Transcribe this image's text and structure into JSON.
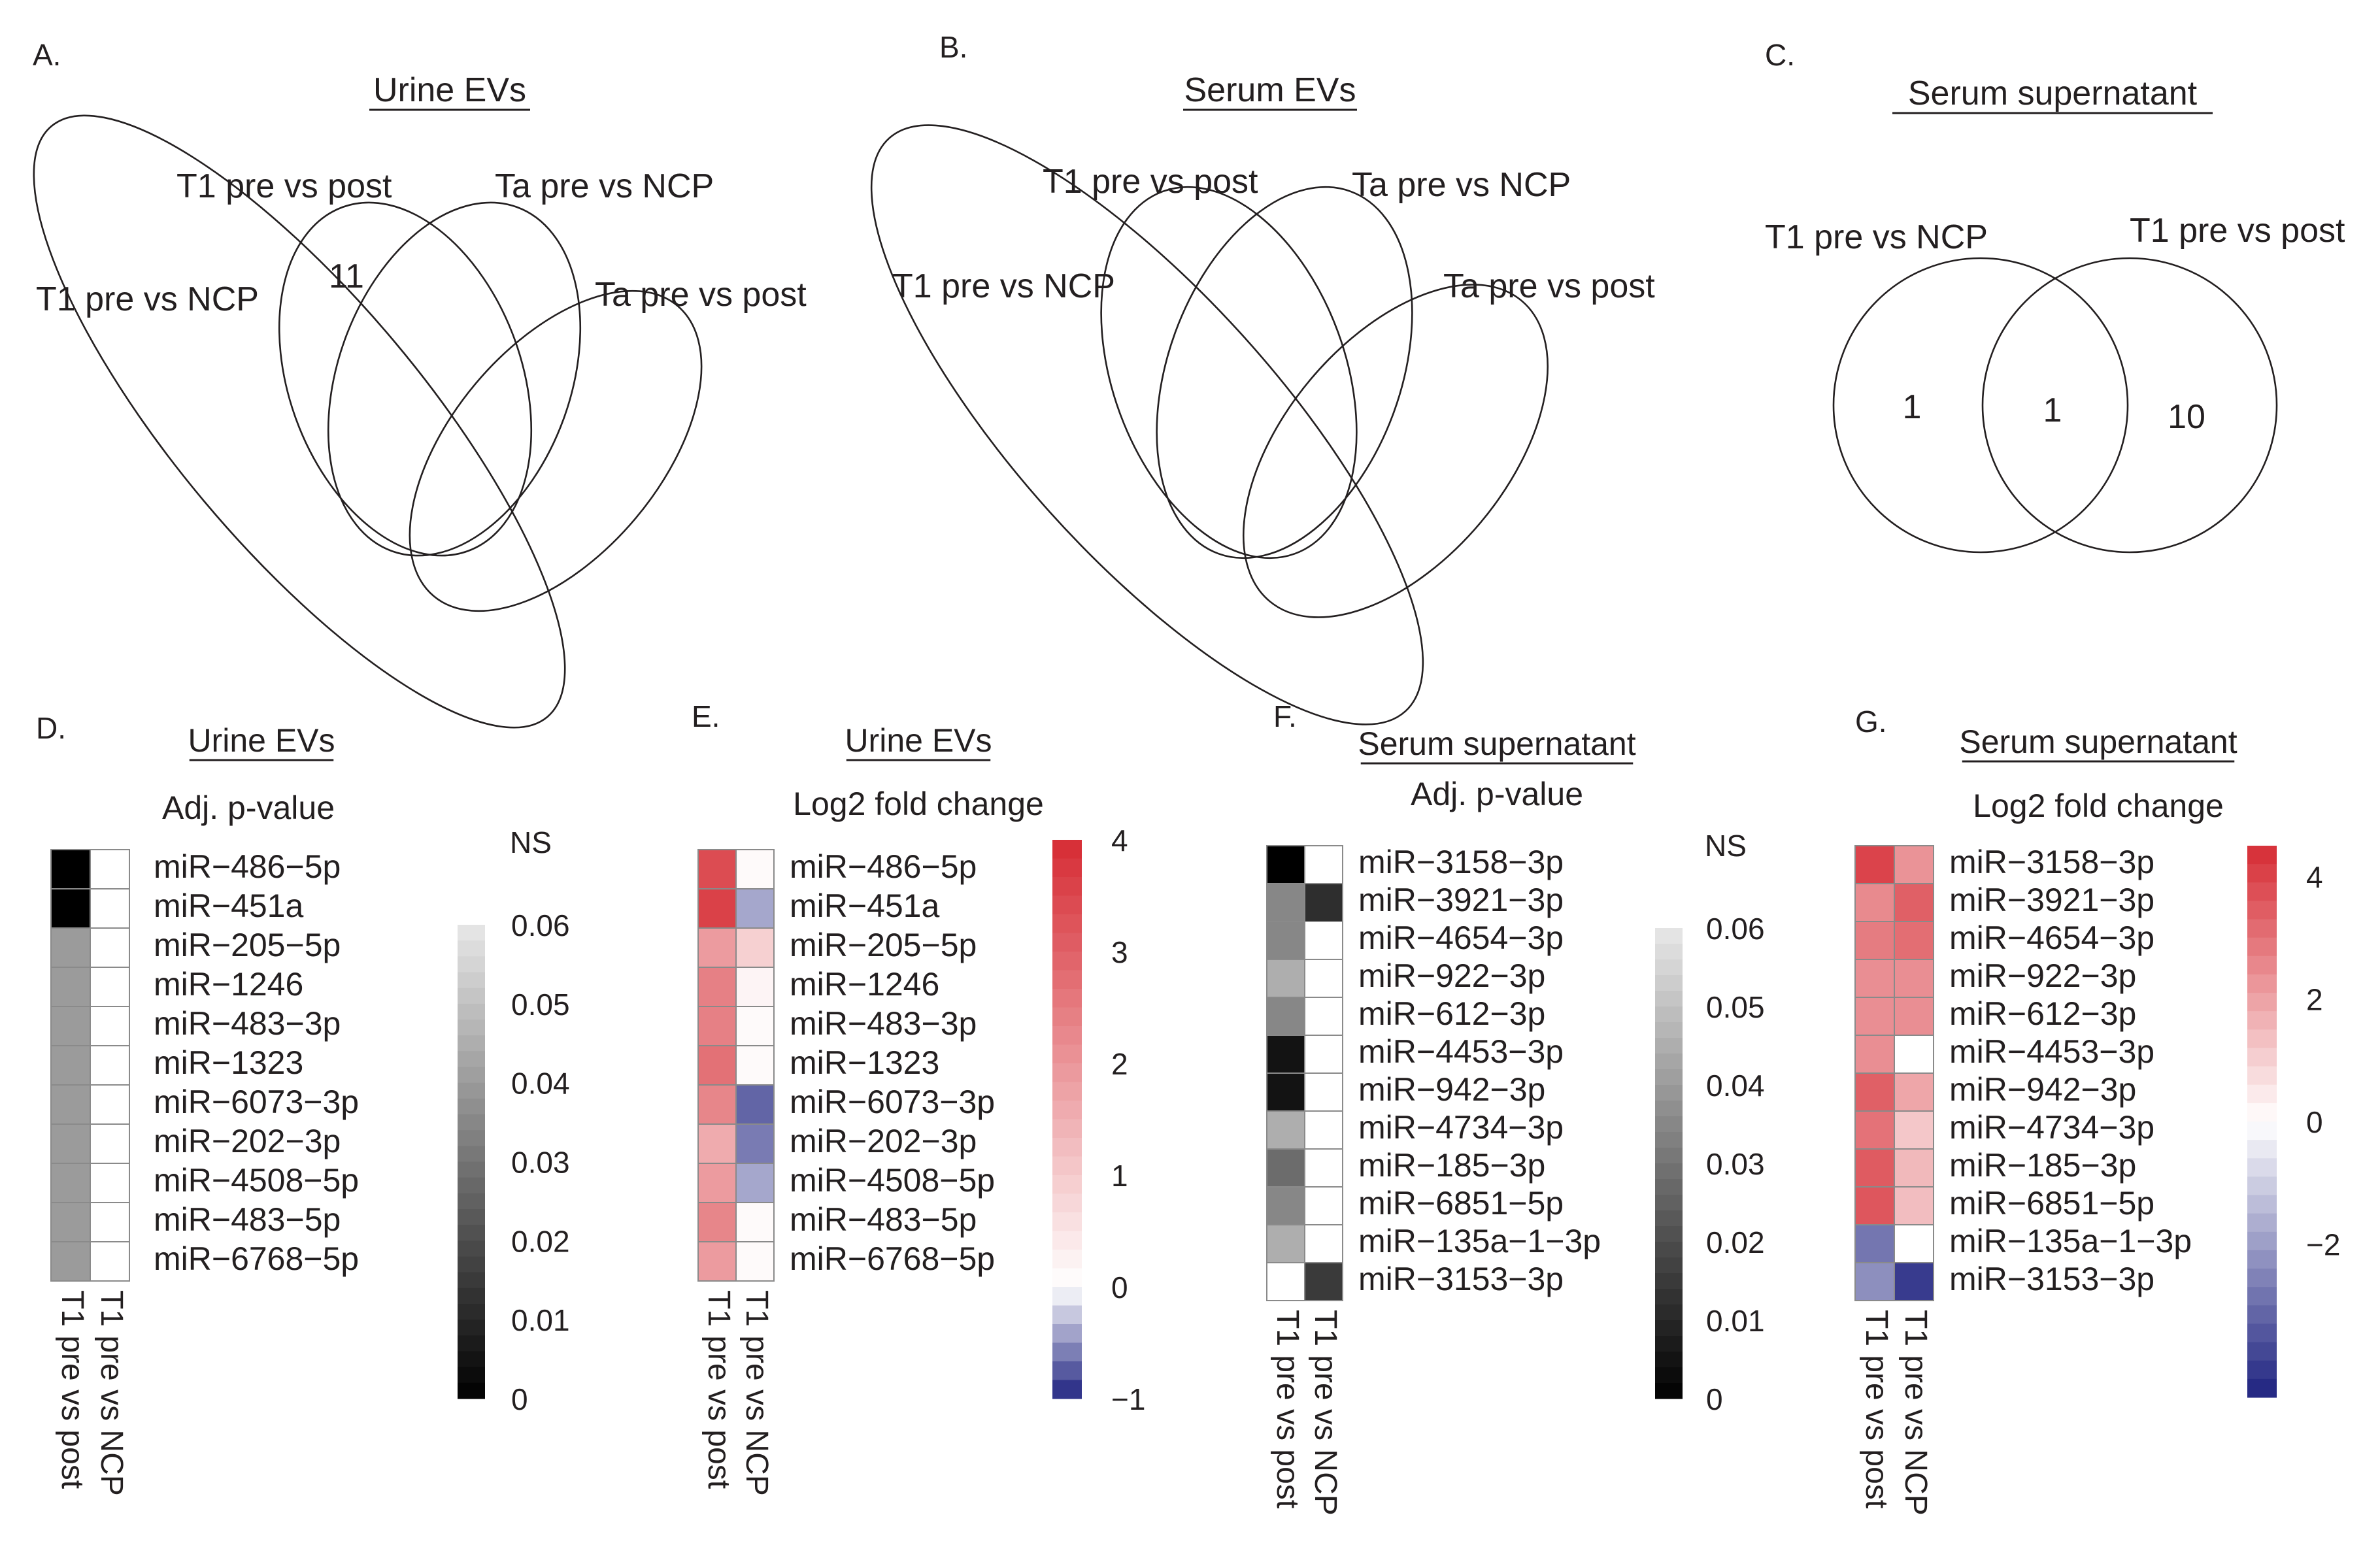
{
  "chart_data": [
    {
      "panel": "A.",
      "type": "venn",
      "title": "Urine EVs",
      "sets": [
        "T1 pre vs post",
        "Ta pre vs NCP",
        "T1 pre vs NCP",
        "Ta pre vs post"
      ],
      "region_counts": [
        {
          "region": "T1 pre vs post only",
          "count": "11"
        }
      ]
    },
    {
      "panel": "B.",
      "type": "venn",
      "title": "Serum EVs",
      "sets": [
        "T1 pre vs post",
        "Ta pre vs NCP",
        "T1 pre vs NCP",
        "Ta pre vs post"
      ],
      "region_counts": []
    },
    {
      "panel": "C.",
      "type": "venn",
      "title": "Serum supernatant",
      "sets": [
        "T1 pre vs NCP",
        "T1 pre vs post"
      ],
      "region_counts": [
        {
          "region": "T1 pre vs NCP only",
          "count": "1"
        },
        {
          "region": "shared",
          "count": "1"
        },
        {
          "region": "T1 pre vs post only",
          "count": "10"
        }
      ]
    },
    {
      "panel": "D.",
      "type": "heatmap",
      "title": "Urine EVs",
      "subtitle": "Adj. p-value",
      "rows": [
        "miR−486−5p",
        "miR−451a",
        "miR−205−5p",
        "miR−1246",
        "miR−483−3p",
        "miR−1323",
        "miR−6073−3p",
        "miR−202−3p",
        "miR−4508−5p",
        "miR−483−5p",
        "miR−6768−5p"
      ],
      "columns": [
        "T1 pre vs post",
        "T1 pre vs NCP"
      ],
      "values": [
        [
          0.0,
          "NS"
        ],
        [
          0.0,
          "NS"
        ],
        [
          0.04,
          "NS"
        ],
        [
          0.04,
          "NS"
        ],
        [
          0.04,
          "NS"
        ],
        [
          0.04,
          "NS"
        ],
        [
          0.04,
          "NS"
        ],
        [
          0.04,
          "NS"
        ],
        [
          0.04,
          "NS"
        ],
        [
          0.04,
          "NS"
        ],
        [
          0.04,
          "NS"
        ]
      ],
      "colorbar": {
        "palette": "gray",
        "range": [
          0,
          0.06
        ],
        "ticks": [
          "0",
          "0.01",
          "0.02",
          "0.03",
          "0.04",
          "0.05",
          "0.06"
        ],
        "top_label": "NS"
      }
    },
    {
      "panel": "E.",
      "type": "heatmap",
      "title": "Urine EVs",
      "subtitle": "Log2 fold change",
      "rows": [
        "miR−486−5p",
        "miR−451a",
        "miR−205−5p",
        "miR−1246",
        "miR−483−3p",
        "miR−1323",
        "miR−6073−3p",
        "miR−202−3p",
        "miR−4508−5p",
        "miR−483−5p",
        "miR−6768−5p"
      ],
      "columns": [
        "T1 pre vs post",
        "T1 pre vs NCP"
      ],
      "values": [
        [
          3.4,
          0.1
        ],
        [
          3.6,
          -0.4
        ],
        [
          1.9,
          0.9
        ],
        [
          2.4,
          0.2
        ],
        [
          2.4,
          0.1
        ],
        [
          2.7,
          0.1
        ],
        [
          2.3,
          -0.7
        ],
        [
          1.6,
          -0.6
        ],
        [
          1.9,
          -0.4
        ],
        [
          2.3,
          0.1
        ],
        [
          1.9,
          0.1
        ]
      ],
      "colorbar": {
        "palette": "diverging",
        "range": [
          -1,
          4
        ],
        "ticks": [
          "4",
          "3",
          "2",
          "1",
          "0",
          "−1"
        ]
      }
    },
    {
      "panel": "F.",
      "type": "heatmap",
      "title": "Serum supernatant",
      "subtitle": "Adj. p-value",
      "rows": [
        "miR−3158−3p",
        "miR−3921−3p",
        "miR−4654−3p",
        "miR−922−3p",
        "miR−612−3p",
        "miR−4453−3p",
        "miR−942−3p",
        "miR−4734−3p",
        "miR−185−3p",
        "miR−6851−5p",
        "miR−135a−1−3p",
        "miR−3153−3p"
      ],
      "columns": [
        "T1 pre vs post",
        "T1 pre vs NCP"
      ],
      "values": [
        [
          0.0,
          "NS"
        ],
        [
          0.035,
          0.012
        ],
        [
          0.035,
          "NS"
        ],
        [
          0.045,
          "NS"
        ],
        [
          0.035,
          "NS"
        ],
        [
          0.005,
          "NS"
        ],
        [
          0.005,
          "NS"
        ],
        [
          0.045,
          "NS"
        ],
        [
          0.028,
          "NS"
        ],
        [
          0.035,
          "NS"
        ],
        [
          0.045,
          "NS"
        ],
        [
          "NS",
          0.015
        ]
      ],
      "colorbar": {
        "palette": "gray",
        "range": [
          0,
          0.06
        ],
        "ticks": [
          "0",
          "0.01",
          "0.02",
          "0.03",
          "0.04",
          "0.05",
          "0.06"
        ],
        "top_label": "NS"
      }
    },
    {
      "panel": "G.",
      "type": "heatmap",
      "title": "Serum supernatant",
      "subtitle": "Log2 fold change",
      "rows": [
        "miR−3158−3p",
        "miR−3921−3p",
        "miR−4654−3p",
        "miR−922−3p",
        "miR−612−3p",
        "miR−4453−3p",
        "miR−942−3p",
        "miR−4734−3p",
        "miR−185−3p",
        "miR−6851−5p",
        "miR−135a−1−3p",
        "miR−3153−3p"
      ],
      "columns": [
        "T1 pre vs post",
        "T1 pre vs NCP"
      ],
      "values": [
        [
          4.0,
          2.3
        ],
        [
          2.5,
          3.4
        ],
        [
          2.8,
          3.1
        ],
        [
          2.4,
          2.4
        ],
        [
          2.4,
          2.4
        ],
        [
          2.4,
          0.0
        ],
        [
          3.4,
          1.9
        ],
        [
          3.0,
          1.2
        ],
        [
          3.5,
          1.5
        ],
        [
          3.6,
          1.4
        ],
        [
          -2.8,
          0.0
        ],
        [
          -2.3,
          -4.0
        ]
      ],
      "colorbar": {
        "palette": "diverging",
        "range": [
          -4.5,
          4.5
        ],
        "ticks": [
          "4",
          "2",
          "0",
          "−2"
        ]
      }
    }
  ]
}
